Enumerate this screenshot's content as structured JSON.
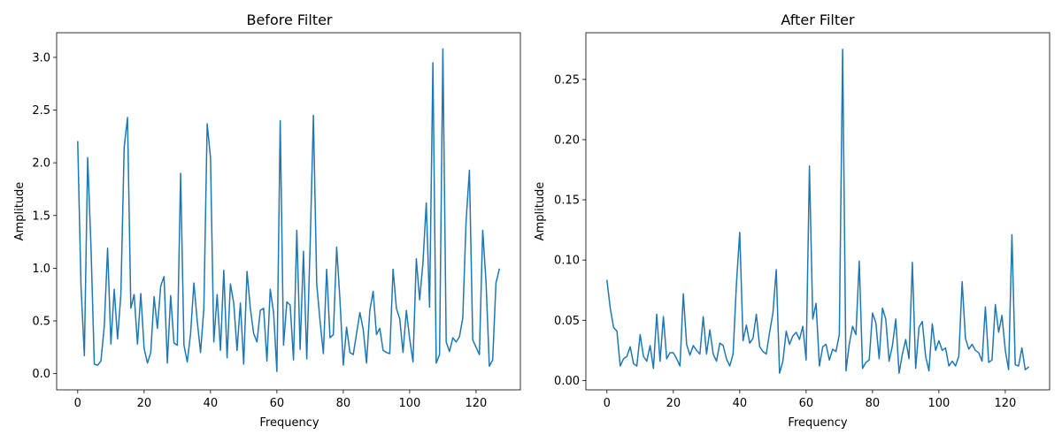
{
  "chart_data": [
    {
      "type": "line",
      "title": "Before Filter",
      "xlabel": "Frequency",
      "ylabel": "Amplitude",
      "xlim": [
        -6.35,
        133.35
      ],
      "ylim": [
        -0.154,
        3.234
      ],
      "xticks": [
        0,
        20,
        40,
        60,
        80,
        100,
        120
      ],
      "yticks": [
        0.0,
        0.5,
        1.0,
        1.5,
        2.0,
        2.5,
        3.0
      ],
      "ytick_labels": [
        "0.0",
        "0.5",
        "1.0",
        "1.5",
        "2.0",
        "2.5",
        "3.0"
      ],
      "grid": false,
      "series": [
        {
          "color": "#1f77b4",
          "x": [
            0,
            1,
            2,
            3,
            4,
            5,
            6,
            7,
            8,
            9,
            10,
            11,
            12,
            13,
            14,
            15,
            16,
            17,
            18,
            19,
            20,
            21,
            22,
            23,
            24,
            25,
            26,
            27,
            28,
            29,
            30,
            31,
            32,
            33,
            34,
            35,
            36,
            37,
            38,
            39,
            40,
            41,
            42,
            43,
            44,
            45,
            46,
            47,
            48,
            49,
            50,
            51,
            52,
            53,
            54,
            55,
            56,
            57,
            58,
            59,
            60,
            61,
            62,
            63,
            64,
            65,
            66,
            67,
            68,
            69,
            70,
            71,
            72,
            73,
            74,
            75,
            76,
            77,
            78,
            79,
            80,
            81,
            82,
            83,
            84,
            85,
            86,
            87,
            88,
            89,
            90,
            91,
            92,
            93,
            94,
            95,
            96,
            97,
            98,
            99,
            100,
            101,
            102,
            103,
            104,
            105,
            106,
            107,
            108,
            109,
            110,
            111,
            112,
            113,
            114,
            115,
            116,
            117,
            118,
            119,
            120,
            121,
            122,
            123,
            124,
            125,
            126,
            127
          ],
          "values": [
            2.2,
            0.82,
            0.17,
            2.05,
            1.2,
            0.09,
            0.08,
            0.12,
            0.45,
            1.19,
            0.28,
            0.8,
            0.33,
            0.75,
            2.15,
            2.43,
            0.62,
            0.75,
            0.28,
            0.76,
            0.24,
            0.1,
            0.2,
            0.73,
            0.43,
            0.83,
            0.92,
            0.1,
            0.74,
            0.29,
            0.27,
            1.9,
            0.27,
            0.11,
            0.38,
            0.86,
            0.5,
            0.2,
            0.62,
            2.37,
            2.05,
            0.3,
            0.75,
            0.22,
            0.98,
            0.15,
            0.85,
            0.67,
            0.22,
            0.67,
            0.09,
            0.97,
            0.62,
            0.38,
            0.3,
            0.6,
            0.62,
            0.12,
            0.8,
            0.58,
            0.02,
            2.4,
            0.27,
            0.68,
            0.65,
            0.13,
            1.36,
            0.23,
            1.16,
            0.14,
            1.2,
            2.45,
            0.85,
            0.5,
            0.19,
            0.99,
            0.34,
            0.37,
            1.2,
            0.7,
            0.08,
            0.44,
            0.2,
            0.18,
            0.38,
            0.58,
            0.42,
            0.1,
            0.6,
            0.78,
            0.37,
            0.43,
            0.22,
            0.2,
            0.19,
            0.99,
            0.62,
            0.52,
            0.2,
            0.6,
            0.33,
            0.11,
            1.09,
            0.7,
            1.05,
            1.62,
            0.63,
            2.95,
            0.1,
            0.18,
            3.08,
            0.3,
            0.21,
            0.34,
            0.3,
            0.35,
            0.53,
            1.45,
            1.93,
            0.32,
            0.25,
            0.18,
            1.36,
            0.87,
            0.07,
            0.13,
            0.86,
            0.99
          ]
        }
      ]
    },
    {
      "type": "line",
      "title": "After Filter",
      "xlabel": "Frequency",
      "ylabel": "Amplitude",
      "xlim": [
        -6.35,
        133.35
      ],
      "ylim": [
        -0.0078,
        0.2888
      ],
      "xticks": [
        0,
        20,
        40,
        60,
        80,
        100,
        120
      ],
      "yticks": [
        0.0,
        0.05,
        0.1,
        0.15,
        0.2,
        0.25
      ],
      "ytick_labels": [
        "0.00",
        "0.05",
        "0.10",
        "0.15",
        "0.20",
        "0.25"
      ],
      "grid": false,
      "series": [
        {
          "color": "#1f77b4",
          "x": [
            0,
            1,
            2,
            3,
            4,
            5,
            6,
            7,
            8,
            9,
            10,
            11,
            12,
            13,
            14,
            15,
            16,
            17,
            18,
            19,
            20,
            21,
            22,
            23,
            24,
            25,
            26,
            27,
            28,
            29,
            30,
            31,
            32,
            33,
            34,
            35,
            36,
            37,
            38,
            39,
            40,
            41,
            42,
            43,
            44,
            45,
            46,
            47,
            48,
            49,
            50,
            51,
            52,
            53,
            54,
            55,
            56,
            57,
            58,
            59,
            60,
            61,
            62,
            63,
            64,
            65,
            66,
            67,
            68,
            69,
            70,
            71,
            72,
            73,
            74,
            75,
            76,
            77,
            78,
            79,
            80,
            81,
            82,
            83,
            84,
            85,
            86,
            87,
            88,
            89,
            90,
            91,
            92,
            93,
            94,
            95,
            96,
            97,
            98,
            99,
            100,
            101,
            102,
            103,
            104,
            105,
            106,
            107,
            108,
            109,
            110,
            111,
            112,
            113,
            114,
            115,
            116,
            117,
            118,
            119,
            120,
            121,
            122,
            123,
            124,
            125,
            126,
            127
          ],
          "values": [
            0.083,
            0.06,
            0.044,
            0.041,
            0.012,
            0.018,
            0.02,
            0.028,
            0.014,
            0.012,
            0.038,
            0.02,
            0.016,
            0.029,
            0.01,
            0.055,
            0.016,
            0.053,
            0.018,
            0.023,
            0.023,
            0.018,
            0.012,
            0.072,
            0.03,
            0.021,
            0.029,
            0.025,
            0.022,
            0.053,
            0.022,
            0.042,
            0.022,
            0.016,
            0.031,
            0.029,
            0.018,
            0.012,
            0.022,
            0.08,
            0.123,
            0.033,
            0.046,
            0.031,
            0.035,
            0.055,
            0.028,
            0.024,
            0.022,
            0.04,
            0.056,
            0.092,
            0.006,
            0.016,
            0.041,
            0.03,
            0.037,
            0.04,
            0.034,
            0.045,
            0.017,
            0.178,
            0.051,
            0.064,
            0.012,
            0.028,
            0.03,
            0.017,
            0.026,
            0.024,
            0.038,
            0.275,
            0.008,
            0.03,
            0.045,
            0.038,
            0.099,
            0.01,
            0.015,
            0.017,
            0.056,
            0.048,
            0.018,
            0.06,
            0.051,
            0.016,
            0.029,
            0.051,
            0.006,
            0.022,
            0.034,
            0.018,
            0.098,
            0.01,
            0.044,
            0.049,
            0.02,
            0.008,
            0.047,
            0.025,
            0.033,
            0.025,
            0.027,
            0.012,
            0.016,
            0.012,
            0.02,
            0.082,
            0.035,
            0.026,
            0.03,
            0.025,
            0.023,
            0.016,
            0.061,
            0.015,
            0.017,
            0.063,
            0.04,
            0.054,
            0.025,
            0.009,
            0.121,
            0.013,
            0.012,
            0.027,
            0.009,
            0.011
          ]
        }
      ]
    }
  ]
}
